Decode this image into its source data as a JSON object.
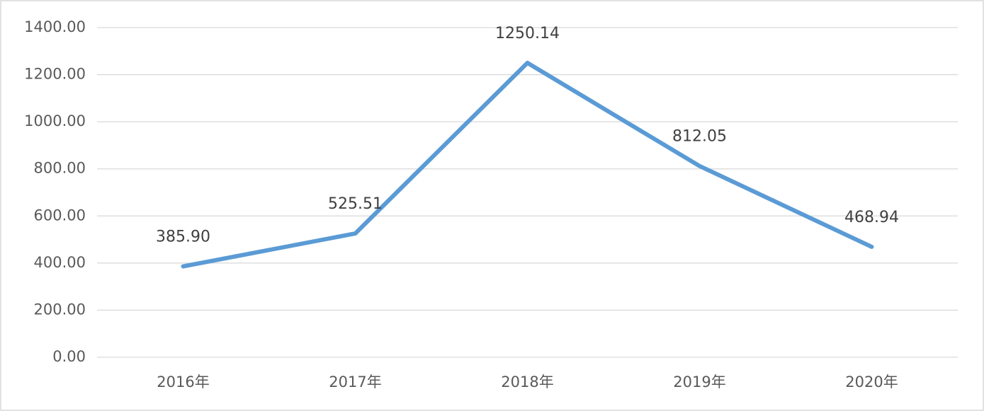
{
  "chart_data": {
    "type": "line",
    "categories": [
      "2016年",
      "2017年",
      "2018年",
      "2019年",
      "2020年"
    ],
    "values": [
      385.9,
      525.51,
      1250.14,
      812.05,
      468.94
    ],
    "value_labels": [
      "385.90",
      "525.51",
      "1250.14",
      "812.05",
      "468.94"
    ],
    "color": "#5b9bd5",
    "ylim": [
      0,
      1400
    ],
    "yticks": [
      {
        "value": 0,
        "label": "0.00"
      },
      {
        "value": 200,
        "label": "200.00"
      },
      {
        "value": 400,
        "label": "400.00"
      },
      {
        "value": 600,
        "label": "600.00"
      },
      {
        "value": 800,
        "label": "800.00"
      },
      {
        "value": 1000,
        "label": "1000.00"
      },
      {
        "value": 1200,
        "label": "1200.00"
      },
      {
        "value": 1400,
        "label": "1400.00"
      }
    ],
    "grid": true
  }
}
